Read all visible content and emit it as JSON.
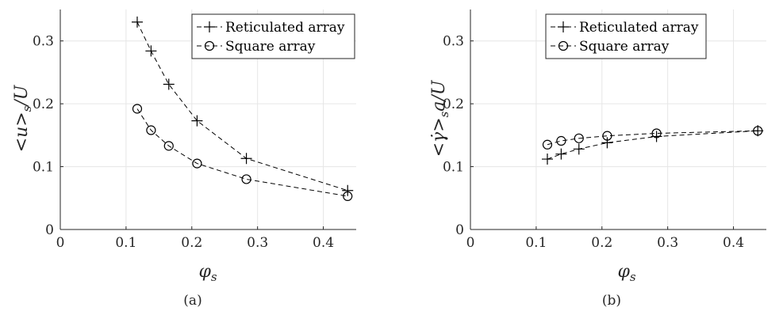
{
  "chart_data": [
    {
      "type": "line",
      "panel_label": "(a)",
      "xlabel": "φ_s",
      "ylabel": "<u>_s/U",
      "xlim": [
        0,
        0.45
      ],
      "ylim": [
        0,
        0.35
      ],
      "xticks": [
        "0",
        "0.1",
        "0.2",
        "0.3",
        "0.4"
      ],
      "yticks": [
        "0",
        "0.1",
        "0.2",
        "0.3"
      ],
      "grid": true,
      "legend_position": "top-right",
      "series": [
        {
          "name": "Reticulated array",
          "marker": "plus",
          "x": [
            0.117,
            0.138,
            0.165,
            0.208,
            0.283,
            0.437
          ],
          "y": [
            0.33,
            0.284,
            0.231,
            0.173,
            0.113,
            0.062
          ]
        },
        {
          "name": "Square array",
          "marker": "circle",
          "x": [
            0.117,
            0.138,
            0.165,
            0.208,
            0.283,
            0.437
          ],
          "y": [
            0.192,
            0.158,
            0.133,
            0.105,
            0.08,
            0.053
          ]
        }
      ]
    },
    {
      "type": "line",
      "panel_label": "(b)",
      "xlabel": "φ_s",
      "ylabel": "<γ̇>_s a/U",
      "xlim": [
        0,
        0.45
      ],
      "ylim": [
        0,
        0.35
      ],
      "xticks": [
        "0",
        "0.1",
        "0.2",
        "0.3",
        "0.4"
      ],
      "yticks": [
        "0",
        "0.1",
        "0.2",
        "0.3"
      ],
      "grid": true,
      "legend_position": "top-right",
      "series": [
        {
          "name": "Reticulated array",
          "marker": "plus",
          "x": [
            0.117,
            0.138,
            0.165,
            0.208,
            0.283,
            0.437
          ],
          "y": [
            0.112,
            0.12,
            0.128,
            0.138,
            0.148,
            0.157
          ]
        },
        {
          "name": "Square array",
          "marker": "circle",
          "x": [
            0.117,
            0.138,
            0.165,
            0.208,
            0.283,
            0.437
          ],
          "y": [
            0.135,
            0.141,
            0.145,
            0.149,
            0.153,
            0.157
          ]
        }
      ]
    }
  ]
}
